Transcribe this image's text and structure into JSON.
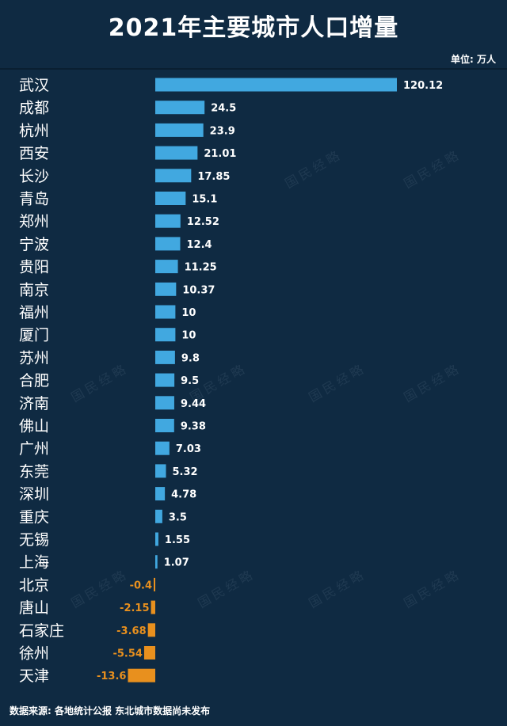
{
  "title": "2021年主要城市人口增量",
  "unit_label": "单位: 万人",
  "footer": "数据来源: 各地统计公报 东北城市数据尚未发布",
  "watermark_text": "国民经略",
  "colors": {
    "positive": "#41a8e0",
    "negative": "#e8901e",
    "background": "#0f2a42"
  },
  "chart_data": {
    "type": "bar",
    "orientation": "horizontal",
    "title": "2021年主要城市人口增量",
    "unit": "单位: 万人",
    "categories": [
      "武汉",
      "成都",
      "杭州",
      "西安",
      "长沙",
      "青岛",
      "郑州",
      "宁波",
      "贵阳",
      "南京",
      "福州",
      "厦门",
      "苏州",
      "合肥",
      "济南",
      "佛山",
      "广州",
      "东莞",
      "深圳",
      "重庆",
      "无锡",
      "上海",
      "北京",
      "唐山",
      "石家庄",
      "徐州",
      "天津"
    ],
    "values": [
      120.12,
      24.5,
      23.9,
      21.01,
      17.85,
      15.1,
      12.52,
      12.4,
      11.25,
      10.37,
      10,
      10,
      9.8,
      9.5,
      9.44,
      9.38,
      7.03,
      5.32,
      4.78,
      3.5,
      1.55,
      1.07,
      -0.4,
      -2.15,
      -3.68,
      -5.54,
      -13.6
    ],
    "labels": [
      "120.12",
      "24.5",
      "23.9",
      "21.01",
      "17.85",
      "15.1",
      "12.52",
      "12.4",
      "11.25",
      "10.37",
      "10",
      "10",
      "9.8",
      "9.5",
      "9.44",
      "9.38",
      "7.03",
      "5.32",
      "4.78",
      "3.5",
      "1.55",
      "1.07",
      "-0.4",
      "-2.15",
      "-3.68",
      "-5.54",
      "-13.6"
    ],
    "grid": false,
    "legend": "none"
  }
}
